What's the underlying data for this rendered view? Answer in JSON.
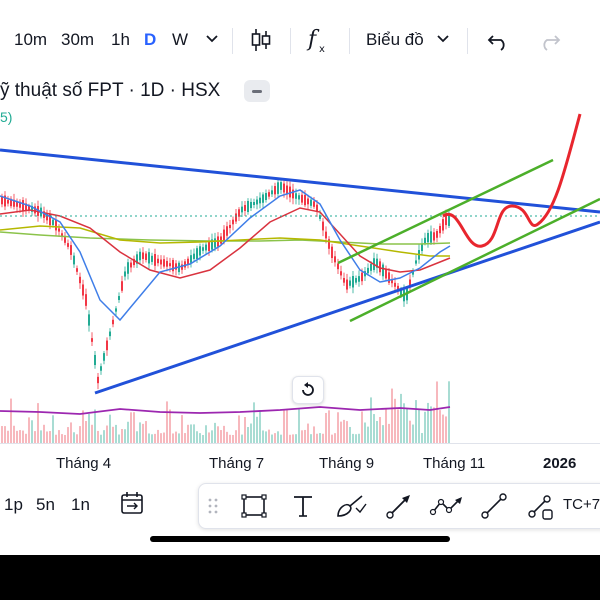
{
  "toolbar": {
    "timeframes": [
      "10m",
      "30m",
      "1h",
      "D",
      "W"
    ],
    "active_timeframe": "D",
    "chart_type_label": "Biểu đồ",
    "icons": [
      "chevron-down-icon",
      "candles-icon",
      "indicators-fx-icon",
      "undo-icon",
      "redo-icon"
    ]
  },
  "chart": {
    "title": "ỹ thuật số FPT · 1D · HSX",
    "indicator_tail": "5)",
    "x_labels": [
      "Tháng 4",
      "Tháng 7",
      "Tháng 9",
      "Tháng 11",
      "2026"
    ],
    "colors": {
      "up_candle": "#22ab94",
      "down_candle": "#f23645",
      "trendline": "#2151d9",
      "channel": "#4caf2a",
      "projection": "#e8262e",
      "volume_line": "#9c27b0",
      "ma_fast": "#3f7ee8",
      "ma_mid": "#d9333f",
      "ma_slow": "#b5b800",
      "ma_long": "#8bc34a"
    }
  },
  "bottom_bar": {
    "timeframes": [
      "1p",
      "5n",
      "1n"
    ],
    "drawing_tools": [
      "drag-handle-icon",
      "rectangle-icon",
      "text-icon",
      "brush-icon",
      "arrow-icon",
      "path-icon",
      "trendline-icon",
      "ray-icon"
    ],
    "shortcut_label": "TC+7"
  }
}
